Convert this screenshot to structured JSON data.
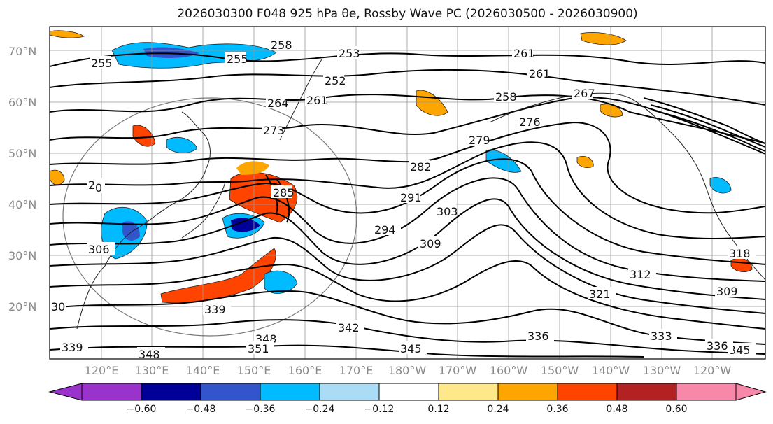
{
  "title": "2026030300 F048 925 hPa θe, Rossby Wave PC (2026030500 - 2026030900)",
  "lat_labels": [
    "70°N",
    "60°N",
    "50°N",
    "40°N",
    "30°N",
    "20°N"
  ],
  "lon_labels": [
    "120°E",
    "130°E",
    "140°E",
    "150°E",
    "160°E",
    "170°E",
    "180°W",
    "170°W",
    "160°W",
    "150°W",
    "140°W",
    "130°W",
    "120°W"
  ],
  "contour_labels": [
    "255",
    "255",
    "258",
    "253",
    "252",
    "261",
    "261",
    "258",
    "267",
    "264",
    "261",
    "273",
    "276",
    "279",
    "282",
    "285",
    "291",
    "294",
    "303",
    "309",
    "312",
    "321",
    "309",
    "318",
    "306",
    "339",
    "342",
    "348",
    "351",
    "336",
    "333",
    "345",
    "339",
    "348",
    "345",
    "336",
    "30",
    "20",
    "0"
  ],
  "colorbar": {
    "tick_labels": [
      "−0.60",
      "−0.48",
      "−0.36",
      "−0.24",
      "−0.12",
      "0.12",
      "0.24",
      "0.36",
      "0.48",
      "0.60"
    ],
    "colors": [
      "#9933cc",
      "#000099",
      "#3355cc",
      "#00bbff",
      "#aaddf5",
      "#ffffff",
      "#ffe88a",
      "#ffa500",
      "#ff4400",
      "#b22222",
      "#f788aa"
    ]
  },
  "colors": {
    "contour": "#000000",
    "coast": "#222222",
    "grid": "#999999",
    "anom_pos_light": "#ffe88a",
    "anom_pos_mid": "#ffa500",
    "anom_pos_strong": "#ff4400",
    "anom_neg_light": "#aaddf5",
    "anom_neg_mid": "#00bbff",
    "anom_neg_strong": "#3355cc",
    "anom_neg_max": "#000099"
  }
}
